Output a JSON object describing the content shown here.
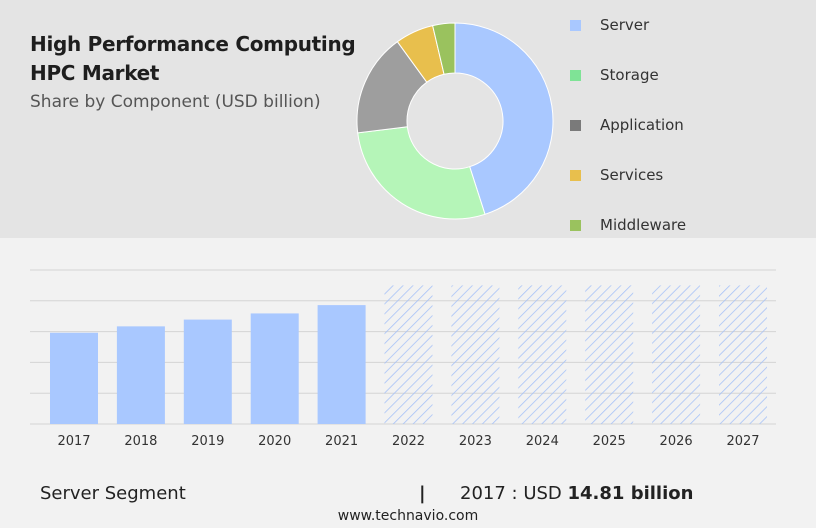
{
  "header": {
    "title": "High Performance Computing HPC Market",
    "subtitle": "Share by Component (USD billion)"
  },
  "colors": {
    "server": "#a9c8ff",
    "storage": "#b5f5b8",
    "application": "#9e9e9e",
    "services": "#e8bf4d",
    "middleware": "#9ac25e",
    "forecast_hatch": "#a7c2f7"
  },
  "legend": [
    {
      "label": "Server",
      "color": "#a9c8ff"
    },
    {
      "label": "Storage",
      "color": "#7fe396"
    },
    {
      "label": "Application",
      "color": "#7a7a7a"
    },
    {
      "label": "Services",
      "color": "#e8bf4d"
    },
    {
      "label": "Middleware",
      "color": "#9ac25e"
    }
  ],
  "chart_data": [
    {
      "type": "pie",
      "subtype": "donut",
      "categories": [
        "Server",
        "Storage",
        "Application",
        "Services",
        "Middleware"
      ],
      "values": [
        45.5,
        28.3,
        17.1,
        6.4,
        3.7
      ],
      "unit": "%"
    },
    {
      "type": "bar",
      "categories": [
        "2017",
        "2018",
        "2019",
        "2020",
        "2021",
        "2022",
        "2023",
        "2024",
        "2025",
        "2026",
        "2027"
      ],
      "values": [
        14.81,
        15.85,
        16.95,
        17.95,
        19.3,
        22.5,
        22.5,
        22.5,
        22.5,
        22.5,
        22.5
      ],
      "forecast_from": "2022",
      "ylim": [
        0,
        25
      ],
      "grid": true
    }
  ],
  "summary": {
    "segment": "Server Segment",
    "separator": "|",
    "year_prefix": "2017 : USD ",
    "value_text": "14.81 billion"
  },
  "footer": "www.technavio.com"
}
